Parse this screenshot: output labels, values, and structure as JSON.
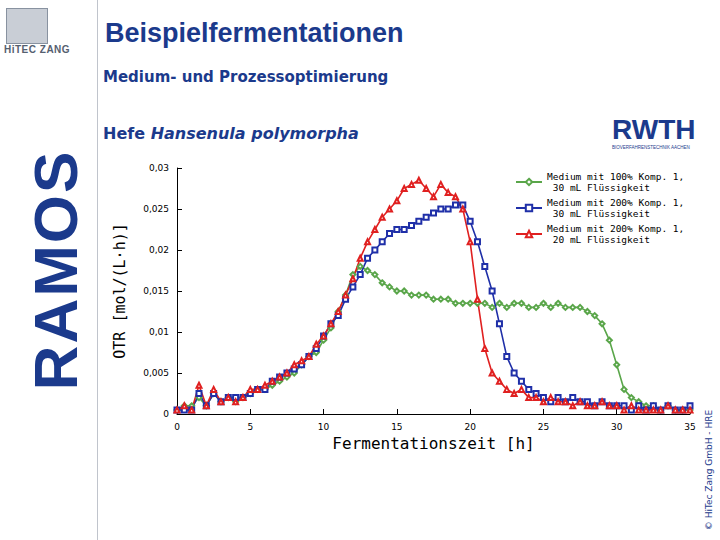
{
  "chart_data": {
    "type": "line",
    "title": "Beispielfermentationen",
    "subtitle": "Medium- und Prozessoptimierung",
    "organism": "Hefe",
    "species": "Hansenula polymorpha",
    "x_label": "Fermentationszeit [h]",
    "y_label": "OTR [mol/(L·h)]",
    "x": [
      0,
      0.5,
      1,
      1.5,
      2,
      2.5,
      3,
      3.5,
      4,
      4.5,
      5,
      5.5,
      6,
      6.5,
      7,
      7.5,
      8,
      8.5,
      9,
      9.5,
      10,
      10.5,
      11,
      11.5,
      12,
      12.5,
      13,
      13.5,
      14,
      14.5,
      15,
      15.5,
      16,
      16.5,
      17,
      17.5,
      18,
      18.5,
      19,
      19.5,
      20,
      20.5,
      21,
      21.5,
      22,
      22.5,
      23,
      23.5,
      24,
      24.5,
      25,
      25.5,
      26,
      26.5,
      27,
      27.5,
      28,
      28.5,
      29,
      29.5,
      30,
      30.5,
      31,
      31.5,
      32,
      32.5,
      33,
      33.5,
      34,
      34.5,
      35
    ],
    "series": [
      {
        "name": "Medium mit 100% Komp. 1, 30 mL Flüssigkeit",
        "color": "#5aa64a",
        "marker": "diamond",
        "line_style": "solid",
        "values": [
          0.0005,
          0.001,
          0.001,
          0.002,
          0.001,
          0.0025,
          0.0015,
          0.002,
          0.0015,
          0.002,
          0.0025,
          0.003,
          0.003,
          0.0035,
          0.004,
          0.0045,
          0.005,
          0.006,
          0.007,
          0.0075,
          0.009,
          0.0105,
          0.0125,
          0.0145,
          0.017,
          0.018,
          0.0175,
          0.017,
          0.016,
          0.0155,
          0.015,
          0.015,
          0.0145,
          0.0145,
          0.0145,
          0.014,
          0.014,
          0.014,
          0.0135,
          0.0135,
          0.0135,
          0.0135,
          0.0135,
          0.013,
          0.0135,
          0.013,
          0.0135,
          0.0135,
          0.013,
          0.013,
          0.0135,
          0.013,
          0.0135,
          0.013,
          0.013,
          0.013,
          0.0125,
          0.012,
          0.011,
          0.009,
          0.006,
          0.003,
          0.002,
          0.0015,
          0.001,
          0.001,
          0.0005,
          0.001,
          0.0005,
          0.0005,
          0.0005
        ]
      },
      {
        "name": "Medium mit 200% Komp. 1, 30 mL Flüssigkeit",
        "color": "#1f2fa8",
        "marker": "square",
        "line_style": "solid",
        "values": [
          0.0005,
          0.0005,
          0.0005,
          0.0025,
          0.001,
          0.0025,
          0.0015,
          0.002,
          0.002,
          0.002,
          0.0025,
          0.003,
          0.003,
          0.004,
          0.0045,
          0.005,
          0.0055,
          0.006,
          0.007,
          0.008,
          0.0095,
          0.011,
          0.012,
          0.014,
          0.0155,
          0.017,
          0.019,
          0.02,
          0.021,
          0.022,
          0.0225,
          0.0225,
          0.023,
          0.0235,
          0.024,
          0.0245,
          0.025,
          0.025,
          0.0255,
          0.0255,
          0.0235,
          0.021,
          0.018,
          0.015,
          0.011,
          0.007,
          0.005,
          0.004,
          0.003,
          0.0025,
          0.002,
          0.0015,
          0.002,
          0.0015,
          0.002,
          0.0015,
          0.0015,
          0.001,
          0.0015,
          0.001,
          0.001,
          0.001,
          0.0005,
          0.001,
          0.0005,
          0.001,
          0.0005,
          0.001,
          0.0005,
          0.0005,
          0.001
        ]
      },
      {
        "name": "Medium mit 200% Komp. 1, 20 mL Flüssigkeit",
        "color": "#e02020",
        "marker": "triangle",
        "line_style": "solid",
        "values": [
          0.0005,
          0.001,
          0.0005,
          0.0035,
          0.001,
          0.003,
          0.0015,
          0.002,
          0.0015,
          0.002,
          0.003,
          0.003,
          0.0035,
          0.004,
          0.0045,
          0.005,
          0.006,
          0.0065,
          0.007,
          0.0085,
          0.0095,
          0.011,
          0.0125,
          0.0145,
          0.0165,
          0.019,
          0.021,
          0.0225,
          0.024,
          0.025,
          0.026,
          0.0275,
          0.028,
          0.0285,
          0.0275,
          0.0265,
          0.028,
          0.027,
          0.0265,
          0.025,
          0.021,
          0.014,
          0.008,
          0.005,
          0.004,
          0.003,
          0.0025,
          0.003,
          0.002,
          0.002,
          0.0015,
          0.002,
          0.0015,
          0.0015,
          0.001,
          0.0015,
          0.001,
          0.001,
          0.0015,
          0.001,
          0.001,
          0.0005,
          0.001,
          0.0005,
          0.0005,
          0.0005,
          0.0005,
          0.001,
          0.0005,
          0.0005,
          0.0005
        ]
      }
    ],
    "xlim": [
      0,
      35
    ],
    "xticks": [
      0,
      5,
      10,
      15,
      20,
      25,
      30,
      35
    ],
    "ylim": [
      0,
      0.03
    ],
    "yticks": [
      0,
      {
        "value": 0.005,
        "label": "0,005"
      },
      {
        "value": 0.01,
        "label": "0,01"
      },
      {
        "value": 0.015,
        "label": "0,015"
      },
      {
        "value": 0.02,
        "label": "0,02"
      },
      {
        "value": 0.025,
        "label": "0,025"
      },
      {
        "value": 0.03,
        "label": "0,03"
      }
    ],
    "grid": false,
    "legend": "upper right"
  },
  "slide": {
    "company_logo": "HiTEC ZANG",
    "product_logo": "RAMOS",
    "partner_logo": "RWTH",
    "partner_subtitle": "BIOVERFAHRENSTECHNIK AACHEN",
    "copyright": "© HiTec Zang GmbH - HRE"
  }
}
